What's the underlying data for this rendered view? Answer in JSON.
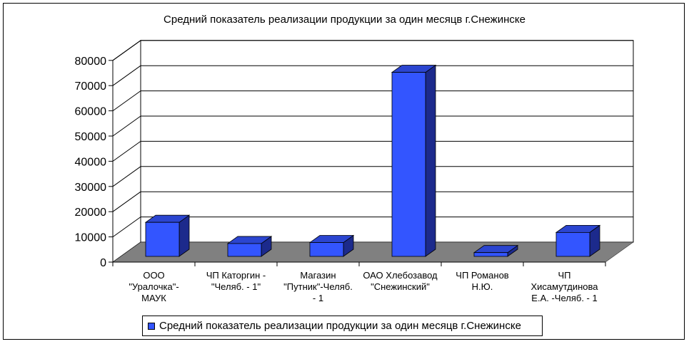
{
  "chart_data": {
    "type": "bar",
    "title": "Средний показатель реализации продукции за один месяцв г.Снежинске",
    "categories": [
      [
        "ООО",
        "\"Уралочка\"-",
        "МАУК"
      ],
      [
        "ЧП Каторгин -",
        "\"Челяб. - 1\""
      ],
      [
        "Магазин",
        "\"Путник\"-Челяб.",
        "- 1"
      ],
      [
        "ОАО Хлебозавод",
        "\"Снежинский\""
      ],
      [
        "ЧП Романов",
        "Н.Ю."
      ],
      [
        "ЧП",
        "Хисамутдинова",
        "Е.А. -Челяб. - 1"
      ]
    ],
    "series": [
      {
        "name": "Средний показатель реализации продукции за один месяцв г.Снежинске",
        "values": [
          13500,
          5100,
          5500,
          73000,
          1500,
          9500
        ]
      }
    ],
    "ylim": [
      0,
      80000
    ],
    "yticks": [
      0,
      10000,
      20000,
      30000,
      40000,
      50000,
      60000,
      70000,
      80000
    ],
    "grid": true,
    "legend": "bottom",
    "colors": {
      "bar_front": "#3355ff",
      "bar_side": "#1c2a8c",
      "bar_top": "#2b45d0",
      "floor": "#808080"
    }
  }
}
